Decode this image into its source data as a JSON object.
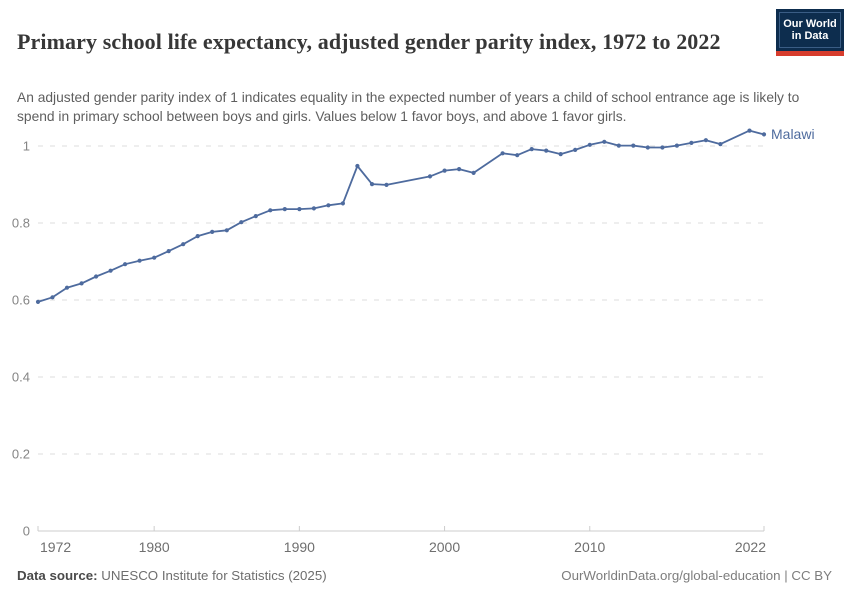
{
  "header": {
    "title": "Primary school life expectancy, adjusted gender parity index, 1972 to 2022",
    "subtitle": "An adjusted gender parity index of 1 indicates equality in the expected number of years a child of school entrance age is likely to spend in primary school between boys and girls. Values below 1 favor boys, and above 1 favor girls."
  },
  "logo": {
    "line1": "Our World",
    "line2": "in Data",
    "bg_color": "#0d2d4e",
    "bar_color": "#d73c2d"
  },
  "chart_data": {
    "type": "line",
    "title": "Primary school life expectancy, adjusted gender parity index, 1972 to 2022",
    "xlabel": "",
    "ylabel": "",
    "xlim": [
      1972,
      2022
    ],
    "ylim": [
      0,
      1.05
    ],
    "xticks": [
      1972,
      1980,
      1990,
      2000,
      2010,
      2022
    ],
    "yticks": [
      0,
      0.2,
      0.4,
      0.6,
      0.8,
      1
    ],
    "ytick_labels": [
      "0",
      "0.2",
      "0.4",
      "0.6",
      "0.8",
      "1"
    ],
    "grid": "horizontal-dashed",
    "legend": "entity label at right end of line",
    "gridline_color": "#dcdcdc",
    "axis_color": "#cccccc",
    "series": [
      {
        "name": "Malawi",
        "color": "#4e6b9e",
        "points": [
          [
            1972,
            0.595
          ],
          [
            1973,
            0.607
          ],
          [
            1974,
            0.632
          ],
          [
            1975,
            0.643
          ],
          [
            1976,
            0.661
          ],
          [
            1977,
            0.676
          ],
          [
            1978,
            0.693
          ],
          [
            1979,
            0.702
          ],
          [
            1980,
            0.71
          ],
          [
            1981,
            0.727
          ],
          [
            1982,
            0.745
          ],
          [
            1983,
            0.766
          ],
          [
            1984,
            0.777
          ],
          [
            1985,
            0.781
          ],
          [
            1986,
            0.802
          ],
          [
            1987,
            0.818
          ],
          [
            1988,
            0.833
          ],
          [
            1989,
            0.836
          ],
          [
            1990,
            0.836
          ],
          [
            1991,
            0.838
          ],
          [
            1992,
            0.846
          ],
          [
            1993,
            0.851
          ],
          [
            1994,
            0.948
          ],
          [
            1995,
            0.901
          ],
          [
            1996,
            0.899
          ],
          [
            1999,
            0.921
          ],
          [
            2000,
            0.936
          ],
          [
            2001,
            0.94
          ],
          [
            2002,
            0.93
          ],
          [
            2004,
            0.981
          ],
          [
            2005,
            0.976
          ],
          [
            2006,
            0.992
          ],
          [
            2007,
            0.988
          ],
          [
            2008,
            0.979
          ],
          [
            2009,
            0.99
          ],
          [
            2010,
            1.003
          ],
          [
            2011,
            1.011
          ],
          [
            2012,
            1.001
          ],
          [
            2013,
            1.001
          ],
          [
            2014,
            0.996
          ],
          [
            2015,
            0.996
          ],
          [
            2016,
            1.001
          ],
          [
            2017,
            1.008
          ],
          [
            2018,
            1.015
          ],
          [
            2019,
            1.005
          ],
          [
            2021,
            1.04
          ],
          [
            2022,
            1.03
          ]
        ]
      }
    ]
  },
  "footer": {
    "source_label": "Data source:",
    "source_value": " UNESCO Institute for Statistics (2025)",
    "link_text": "OurWorldinData.org/global-education | CC BY"
  }
}
